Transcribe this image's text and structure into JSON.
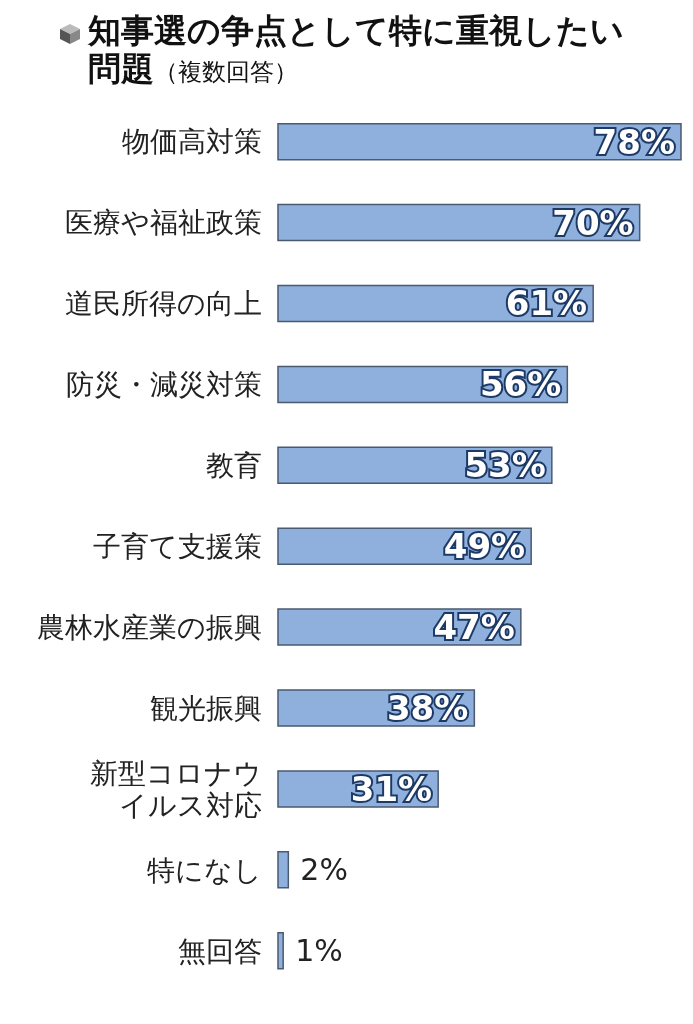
{
  "chart_data": {
    "type": "bar",
    "orientation": "horizontal",
    "title": "知事選の争点として特に重視したい問題",
    "subtitle": "（複数回答）",
    "categories": [
      "物価高対策",
      "医療や福祉政策",
      "道民所得の向上",
      "防災・減災対策",
      "教育",
      "子育て支援策",
      "農林水産業の振興",
      "観光振興",
      "新型コロナウイルス対応",
      "特になし",
      "無回答"
    ],
    "values": [
      78,
      70,
      61,
      56,
      53,
      49,
      47,
      38,
      31,
      2,
      1
    ],
    "value_labels": [
      "78%",
      "70%",
      "61%",
      "56%",
      "53%",
      "49%",
      "47%",
      "38%",
      "31%",
      "2%",
      "1%"
    ],
    "color": "#8fb0dc",
    "grid": false,
    "legend": false
  }
}
